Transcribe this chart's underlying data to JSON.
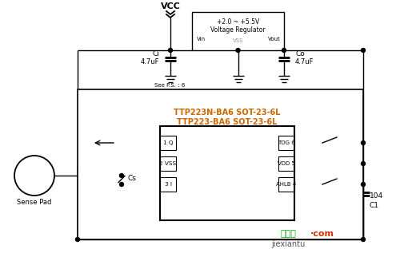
{
  "bg_color": "#ffffff",
  "line_color": "#000000",
  "title_text1": "TTP223N-BA6 SOT-23-6L",
  "title_text2": "TTP223-BA6 SOT-23-6L",
  "watermark1": "接线图",
  "watermark2": "jiexiantu",
  "watermark_color": "#00aa00",
  "vcc_label": "VCC",
  "ci_label": "Ci",
  "ci_val": "4.7uF",
  "co_label": "Co",
  "co_val": "4.7uF",
  "ps_label": "See P.S. : 6",
  "vr_line1": "+2.0 ~ +5.5V",
  "vr_line2": "Voltage Regulator",
  "vr_vin": "Vin",
  "vr_vout": "Vout",
  "vr_vss": "VSS",
  "pin1_label": "1 Q",
  "pin2_label": "2 VSS",
  "pin3_label": "3 I",
  "pin4_label": "AHLB 4",
  "pin5_label": "VDD 5",
  "pin6_label": "TOG 6",
  "sense_label": "Sense Pad",
  "cs_label": "Cs",
  "c1_val": "104",
  "c1_label": "C1"
}
